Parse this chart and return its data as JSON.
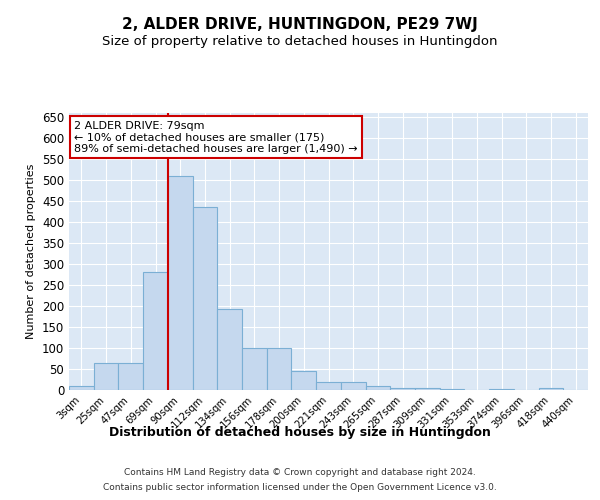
{
  "title1": "2, ALDER DRIVE, HUNTINGDON, PE29 7WJ",
  "title2": "Size of property relative to detached houses in Huntingdon",
  "xlabel": "Distribution of detached houses by size in Huntingdon",
  "ylabel": "Number of detached properties",
  "categories": [
    "3sqm",
    "25sqm",
    "47sqm",
    "69sqm",
    "90sqm",
    "112sqm",
    "134sqm",
    "156sqm",
    "178sqm",
    "200sqm",
    "221sqm",
    "243sqm",
    "265sqm",
    "287sqm",
    "309sqm",
    "331sqm",
    "353sqm",
    "374sqm",
    "396sqm",
    "418sqm",
    "440sqm"
  ],
  "values": [
    10,
    65,
    65,
    280,
    510,
    435,
    192,
    100,
    100,
    46,
    20,
    20,
    10,
    5,
    5,
    2,
    0,
    2,
    0,
    5,
    0
  ],
  "bar_color": "#c5d8ee",
  "bar_edge_color": "#7bafd4",
  "vline_color": "#cc0000",
  "ylim": [
    0,
    660
  ],
  "yticks": [
    0,
    50,
    100,
    150,
    200,
    250,
    300,
    350,
    400,
    450,
    500,
    550,
    600,
    650
  ],
  "annotation_text": "2 ALDER DRIVE: 79sqm\n← 10% of detached houses are smaller (175)\n89% of semi-detached houses are larger (1,490) →",
  "annotation_box_color": "#ffffff",
  "annotation_box_edge": "#cc0000",
  "footer1": "Contains HM Land Registry data © Crown copyright and database right 2024.",
  "footer2": "Contains public sector information licensed under the Open Government Licence v3.0.",
  "plot_bg_color": "#dce8f5",
  "fig_bg_color": "#ffffff",
  "grid_color": "#ffffff",
  "vline_x_index": 4
}
